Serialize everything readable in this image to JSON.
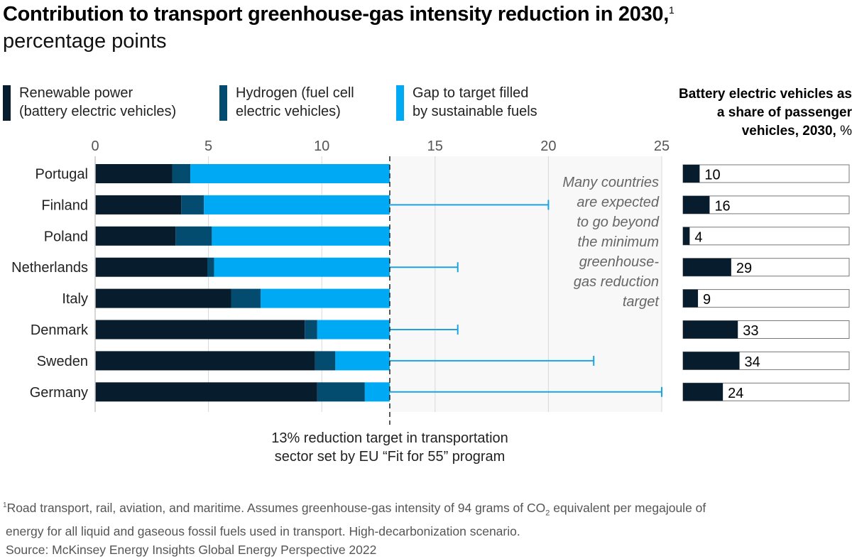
{
  "header": {
    "title": "Contribution to transport greenhouse-gas intensity reduction in 2030,",
    "title_footnote_mark": "1",
    "subtitle": "percentage points"
  },
  "legend": [
    {
      "line1": "Renewable power",
      "line2": "(battery electric vehicles)",
      "color": "#071c2c"
    },
    {
      "line1": "Hydrogen (fuel cell",
      "line2": "electric vehicles)",
      "color": "#034b6f"
    },
    {
      "line1": "Gap to target filled",
      "line2": "by sustainable fuels",
      "color": "#00a9f4"
    }
  ],
  "annotation": {
    "lines": [
      "Many countries",
      "are expected",
      "to go beyond",
      "the minimum",
      "greenhouse-",
      "gas reduction",
      "target"
    ]
  },
  "target_note": {
    "line1": "13% reduction target in transportation",
    "line2": "sector set by EU “Fit for 55” program"
  },
  "side_panel": {
    "title_bold": "Battery electric vehicles as a share of passenger vehicles, 2030,",
    "title_unit": " %"
  },
  "footnote": {
    "mark": "1",
    "line1_a": "Road transport, rail, aviation, and maritime. Assumes greenhouse-gas intensity of 94 grams of CO",
    "line1_sub": "2",
    "line1_b": " equivalent per megajoule of",
    "line2": "energy for all liquid and gaseous fossil fuels used in transport. High-decarbonization scenario.",
    "source": "Source: McKinsey Energy Insights Global Energy Perspective 2022"
  },
  "colors": {
    "renewable": "#071c2c",
    "hydrogen": "#034b6f",
    "gap": "#00a9f4",
    "whisker": "#1ba3e3",
    "grid": "#d9d9d9",
    "shade": "#f8f8f8"
  },
  "chart_data": [
    {
      "type": "bar",
      "orientation": "horizontal",
      "stacked": true,
      "title": "Contribution to transport greenhouse-gas intensity reduction in 2030, percentage points",
      "xlabel": "",
      "ylabel": "",
      "xlim": [
        0,
        25
      ],
      "xticks": [
        0,
        5,
        10,
        15,
        20,
        25
      ],
      "grid": true,
      "legend_position": "top",
      "target_line": 13,
      "categories": [
        "Portugal",
        "Finland",
        "Poland",
        "Netherlands",
        "Italy",
        "Denmark",
        "Sweden",
        "Germany"
      ],
      "series": [
        {
          "name": "Renewable power (battery electric vehicles)",
          "values": [
            3.4,
            3.8,
            3.55,
            4.95,
            6.0,
            9.25,
            9.7,
            9.8
          ]
        },
        {
          "name": "Hydrogen (fuel cell electric vehicles)",
          "values": [
            0.8,
            1.0,
            1.6,
            0.3,
            1.3,
            0.55,
            0.9,
            2.1
          ]
        },
        {
          "name": "Gap to target filled by sustainable fuels",
          "values": [
            8.8,
            8.2,
            7.85,
            7.75,
            5.7,
            3.2,
            2.4,
            1.1
          ]
        }
      ],
      "beyond_target_upper": [
        null,
        20,
        null,
        16,
        null,
        16,
        22,
        25
      ]
    },
    {
      "type": "bar",
      "orientation": "horizontal",
      "title": "Battery electric vehicles as a share of passenger vehicles, 2030, %",
      "categories": [
        "Portugal",
        "Finland",
        "Poland",
        "Netherlands",
        "Italy",
        "Denmark",
        "Sweden",
        "Germany"
      ],
      "values": [
        10,
        16,
        4,
        29,
        9,
        33,
        34,
        24
      ],
      "xlim": [
        0,
        100
      ]
    }
  ]
}
